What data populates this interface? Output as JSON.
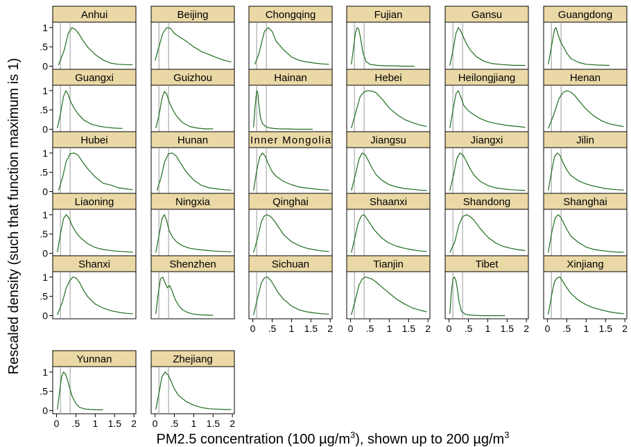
{
  "chart_data": {
    "type": "line",
    "xlabel": "PM2.5 concentration (100 µg/m³), shown up to 200 µg/m³",
    "xlabel_parts": [
      "PM2.5 concentration (100 ",
      "µg/m",
      "3",
      "), shown up to 200 ",
      "µg/m",
      "3"
    ],
    "ylabel": "Rescaled density (such that function maximum is 1)",
    "x_ticks": [
      0,
      0.5,
      1,
      1.5,
      2
    ],
    "x_tick_labels": [
      "0",
      ".5",
      "1",
      "1.5",
      "2"
    ],
    "y_ticks": [
      0,
      0.5,
      1
    ],
    "y_tick_labels": [
      "0",
      ".5",
      "1"
    ],
    "xlim": [
      -0.1,
      2.05
    ],
    "ylim": [
      -0.08,
      1.14
    ],
    "reference_lines_x": [
      0.1,
      0.35
    ],
    "colors": {
      "line": "#1e6b1e",
      "strip": "#ead8a6",
      "ref_line": "#999999"
    },
    "grid": false,
    "panels": [
      {
        "name": "Anhui",
        "x": [
          0.05,
          0.2,
          0.3,
          0.4,
          0.5,
          0.6,
          0.7,
          0.8,
          1.0,
          1.2,
          1.4,
          1.6,
          1.8,
          1.97
        ],
        "y": [
          0.03,
          0.42,
          0.84,
          1.0,
          0.94,
          0.8,
          0.64,
          0.5,
          0.3,
          0.16,
          0.08,
          0.05,
          0.04,
          0.04
        ]
      },
      {
        "name": "Beijing",
        "x": [
          0.0,
          0.1,
          0.2,
          0.3,
          0.4,
          0.5,
          0.6,
          0.8,
          1.0,
          1.2,
          1.4,
          1.6,
          1.8,
          1.97
        ],
        "y": [
          0.15,
          0.5,
          0.85,
          1.0,
          0.98,
          0.85,
          0.78,
          0.65,
          0.5,
          0.38,
          0.3,
          0.22,
          0.15,
          0.11
        ]
      },
      {
        "name": "Chongqing",
        "x": [
          0.05,
          0.15,
          0.3,
          0.4,
          0.5,
          0.6,
          0.8,
          1.0,
          1.2,
          1.4,
          1.6,
          1.8,
          1.97
        ],
        "y": [
          0.05,
          0.3,
          0.9,
          1.0,
          0.9,
          0.65,
          0.42,
          0.24,
          0.15,
          0.11,
          0.08,
          0.06,
          0.05
        ]
      },
      {
        "name": "Fujian",
        "x": [
          0.02,
          0.08,
          0.13,
          0.17,
          0.21,
          0.26,
          0.32,
          0.4,
          0.5,
          0.7,
          0.9,
          1.1,
          1.35,
          1.65
        ],
        "y": [
          0.05,
          0.5,
          0.88,
          1.0,
          0.96,
          0.72,
          0.35,
          0.12,
          0.05,
          0.02,
          0.01,
          0.01,
          0.0,
          0.0
        ]
      },
      {
        "name": "Gansu",
        "x": [
          0.02,
          0.1,
          0.18,
          0.24,
          0.3,
          0.36,
          0.45,
          0.55,
          0.7,
          0.9,
          1.1,
          1.4,
          1.7,
          1.97
        ],
        "y": [
          0.02,
          0.4,
          0.85,
          1.0,
          0.92,
          0.78,
          0.58,
          0.42,
          0.25,
          0.13,
          0.07,
          0.04,
          0.02,
          0.02
        ]
      },
      {
        "name": "Guangdong",
        "x": [
          0.02,
          0.1,
          0.18,
          0.22,
          0.28,
          0.34,
          0.4,
          0.5,
          0.6,
          0.8,
          1.0,
          1.3,
          1.6
        ],
        "y": [
          0.05,
          0.5,
          0.95,
          1.0,
          0.8,
          0.62,
          0.52,
          0.34,
          0.2,
          0.1,
          0.05,
          0.03,
          0.02
        ]
      },
      {
        "name": "Guangxi",
        "x": [
          0.02,
          0.1,
          0.18,
          0.24,
          0.3,
          0.36,
          0.45,
          0.55,
          0.7,
          0.9,
          1.1,
          1.3,
          1.5,
          1.7
        ],
        "y": [
          0.03,
          0.4,
          0.85,
          1.0,
          0.9,
          0.72,
          0.55,
          0.4,
          0.24,
          0.13,
          0.08,
          0.05,
          0.03,
          0.02
        ]
      },
      {
        "name": "Guizhou",
        "x": [
          0.02,
          0.1,
          0.18,
          0.24,
          0.3,
          0.36,
          0.45,
          0.55,
          0.7,
          0.9,
          1.1,
          1.3,
          1.5
        ],
        "y": [
          0.03,
          0.35,
          0.8,
          0.98,
          0.92,
          0.72,
          0.52,
          0.35,
          0.18,
          0.07,
          0.03,
          0.01,
          0.01
        ]
      },
      {
        "name": "Hainan",
        "x": [
          0.02,
          0.06,
          0.1,
          0.13,
          0.16,
          0.2,
          0.25,
          0.32,
          0.4,
          0.55,
          0.7,
          0.9,
          1.1,
          1.3,
          1.55
        ],
        "y": [
          0.05,
          0.6,
          1.0,
          0.95,
          0.6,
          0.3,
          0.15,
          0.08,
          0.04,
          0.02,
          0.01,
          0.01,
          0.0,
          0.0,
          0.0
        ]
      },
      {
        "name": "Hebei",
        "x": [
          0.02,
          0.15,
          0.25,
          0.35,
          0.45,
          0.55,
          0.65,
          0.8,
          1.0,
          1.2,
          1.4,
          1.6,
          1.8,
          1.97
        ],
        "y": [
          0.03,
          0.5,
          0.85,
          0.97,
          1.0,
          0.99,
          0.95,
          0.8,
          0.55,
          0.38,
          0.25,
          0.17,
          0.11,
          0.07
        ]
      },
      {
        "name": "Heilongjiang",
        "x": [
          0.02,
          0.1,
          0.18,
          0.24,
          0.3,
          0.38,
          0.48,
          0.6,
          0.8,
          1.0,
          1.2,
          1.5,
          1.8,
          1.97
        ],
        "y": [
          0.03,
          0.5,
          0.92,
          1.0,
          0.85,
          0.62,
          0.5,
          0.4,
          0.28,
          0.2,
          0.15,
          0.1,
          0.07,
          0.05
        ]
      },
      {
        "name": "Henan",
        "x": [
          0.02,
          0.15,
          0.3,
          0.4,
          0.5,
          0.6,
          0.7,
          0.8,
          1.0,
          1.2,
          1.4,
          1.6,
          1.8,
          1.97
        ],
        "y": [
          0.02,
          0.35,
          0.8,
          0.95,
          1.0,
          0.96,
          0.88,
          0.75,
          0.52,
          0.34,
          0.22,
          0.14,
          0.1,
          0.07
        ]
      },
      {
        "name": "Hubei",
        "x": [
          0.05,
          0.15,
          0.25,
          0.35,
          0.45,
          0.55,
          0.65,
          0.8,
          1.0,
          1.2,
          1.4,
          1.6,
          1.8,
          1.97
        ],
        "y": [
          0.03,
          0.35,
          0.78,
          0.98,
          1.0,
          0.95,
          0.8,
          0.6,
          0.38,
          0.22,
          0.17,
          0.1,
          0.07,
          0.05
        ]
      },
      {
        "name": "Hunan",
        "x": [
          0.05,
          0.15,
          0.25,
          0.35,
          0.45,
          0.55,
          0.65,
          0.8,
          1.0,
          1.2,
          1.4,
          1.6,
          1.8,
          1.97
        ],
        "y": [
          0.03,
          0.35,
          0.78,
          0.98,
          1.0,
          0.92,
          0.75,
          0.52,
          0.3,
          0.16,
          0.1,
          0.07,
          0.05,
          0.04
        ]
      },
      {
        "name": "Inner Mongolia",
        "x": [
          0.02,
          0.1,
          0.18,
          0.25,
          0.32,
          0.4,
          0.5,
          0.6,
          0.8,
          1.0,
          1.2,
          1.5,
          1.8,
          1.97
        ],
        "y": [
          0.03,
          0.55,
          0.9,
          1.0,
          0.92,
          0.72,
          0.52,
          0.4,
          0.26,
          0.18,
          0.12,
          0.08,
          0.05,
          0.04
        ]
      },
      {
        "name": "Jiangsu",
        "x": [
          0.02,
          0.12,
          0.22,
          0.3,
          0.38,
          0.46,
          0.55,
          0.65,
          0.8,
          1.0,
          1.2,
          1.4,
          1.6,
          1.8,
          1.97
        ],
        "y": [
          0.03,
          0.42,
          0.85,
          1.0,
          0.95,
          0.8,
          0.62,
          0.45,
          0.3,
          0.18,
          0.12,
          0.08,
          0.06,
          0.04,
          0.03
        ]
      },
      {
        "name": "Jiangxi",
        "x": [
          0.02,
          0.12,
          0.2,
          0.28,
          0.36,
          0.45,
          0.55,
          0.65,
          0.8,
          1.0,
          1.2,
          1.4,
          1.6,
          1.8,
          1.97
        ],
        "y": [
          0.03,
          0.45,
          0.85,
          1.0,
          0.95,
          0.78,
          0.58,
          0.42,
          0.27,
          0.16,
          0.1,
          0.07,
          0.05,
          0.04,
          0.03
        ]
      },
      {
        "name": "Jilin",
        "x": [
          0.02,
          0.1,
          0.18,
          0.25,
          0.32,
          0.4,
          0.5,
          0.6,
          0.8,
          1.0,
          1.2,
          1.5,
          1.8,
          1.97
        ],
        "y": [
          0.03,
          0.5,
          0.9,
          1.0,
          0.94,
          0.75,
          0.56,
          0.42,
          0.28,
          0.2,
          0.14,
          0.08,
          0.05,
          0.04
        ]
      },
      {
        "name": "Liaoning",
        "x": [
          0.02,
          0.1,
          0.18,
          0.25,
          0.32,
          0.4,
          0.5,
          0.6,
          0.8,
          1.0,
          1.2,
          1.5,
          1.8,
          1.97
        ],
        "y": [
          0.03,
          0.5,
          0.9,
          1.0,
          0.92,
          0.72,
          0.55,
          0.42,
          0.25,
          0.15,
          0.1,
          0.06,
          0.04,
          0.03
        ]
      },
      {
        "name": "Ningxia",
        "x": [
          0.02,
          0.1,
          0.18,
          0.24,
          0.3,
          0.36,
          0.45,
          0.55,
          0.7,
          0.9,
          1.1,
          1.3,
          1.5,
          1.7,
          1.97
        ],
        "y": [
          0.02,
          0.45,
          0.9,
          1.0,
          0.85,
          0.6,
          0.42,
          0.3,
          0.2,
          0.13,
          0.1,
          0.08,
          0.06,
          0.05,
          0.04
        ]
      },
      {
        "name": "Qinghai",
        "x": [
          0.02,
          0.12,
          0.22,
          0.3,
          0.38,
          0.46,
          0.55,
          0.65,
          0.8,
          1.0,
          1.2,
          1.4,
          1.6,
          1.8,
          1.97
        ],
        "y": [
          0.02,
          0.38,
          0.82,
          0.97,
          1.0,
          0.95,
          0.85,
          0.7,
          0.48,
          0.3,
          0.2,
          0.13,
          0.09,
          0.06,
          0.05
        ]
      },
      {
        "name": "Shaanxi",
        "x": [
          0.02,
          0.1,
          0.2,
          0.28,
          0.35,
          0.42,
          0.5,
          0.6,
          0.8,
          1.0,
          1.2,
          1.4,
          1.6,
          1.8,
          1.97
        ],
        "y": [
          0.02,
          0.35,
          0.8,
          0.97,
          1.0,
          0.9,
          0.78,
          0.62,
          0.4,
          0.26,
          0.18,
          0.13,
          0.09,
          0.06,
          0.05
        ]
      },
      {
        "name": "Shandong",
        "x": [
          0.02,
          0.15,
          0.25,
          0.35,
          0.45,
          0.55,
          0.65,
          0.8,
          1.0,
          1.2,
          1.4,
          1.6,
          1.8,
          1.97
        ],
        "y": [
          0.02,
          0.3,
          0.72,
          0.95,
          1.0,
          0.95,
          0.85,
          0.65,
          0.42,
          0.27,
          0.18,
          0.13,
          0.09,
          0.07
        ]
      },
      {
        "name": "Shanghai",
        "x": [
          0.02,
          0.1,
          0.2,
          0.28,
          0.35,
          0.42,
          0.5,
          0.6,
          0.8,
          1.0,
          1.2,
          1.4,
          1.6,
          1.8,
          1.97
        ],
        "y": [
          0.02,
          0.5,
          0.92,
          1.0,
          0.92,
          0.78,
          0.62,
          0.45,
          0.28,
          0.16,
          0.1,
          0.07,
          0.05,
          0.03,
          0.03
        ]
      },
      {
        "name": "Shanxi",
        "x": [
          0.02,
          0.15,
          0.25,
          0.35,
          0.42,
          0.5,
          0.6,
          0.7,
          0.8,
          1.0,
          1.2,
          1.4,
          1.6,
          1.8,
          1.97
        ],
        "y": [
          0.02,
          0.35,
          0.72,
          0.92,
          1.0,
          0.98,
          0.85,
          0.65,
          0.5,
          0.3,
          0.2,
          0.13,
          0.09,
          0.06,
          0.05
        ]
      },
      {
        "name": "Shenzhen",
        "x": [
          0.02,
          0.08,
          0.14,
          0.2,
          0.26,
          0.32,
          0.38,
          0.45,
          0.52,
          0.6,
          0.7,
          0.85,
          1.0,
          1.2,
          1.5
        ],
        "y": [
          0.05,
          0.55,
          0.95,
          1.0,
          0.85,
          0.72,
          0.78,
          0.62,
          0.42,
          0.28,
          0.16,
          0.08,
          0.04,
          0.02,
          0.01
        ]
      },
      {
        "name": "Sichuan",
        "x": [
          0.02,
          0.12,
          0.22,
          0.3,
          0.38,
          0.46,
          0.55,
          0.65,
          0.8,
          1.0,
          1.2,
          1.4,
          1.6,
          1.8,
          1.97
        ],
        "y": [
          0.02,
          0.45,
          0.85,
          0.98,
          1.0,
          0.92,
          0.78,
          0.6,
          0.42,
          0.25,
          0.15,
          0.1,
          0.07,
          0.05,
          0.04
        ]
      },
      {
        "name": "Tianjin",
        "x": [
          0.02,
          0.12,
          0.22,
          0.3,
          0.38,
          0.46,
          0.55,
          0.65,
          0.8,
          1.0,
          1.2,
          1.4,
          1.6,
          1.8,
          1.97
        ],
        "y": [
          0.02,
          0.4,
          0.8,
          0.95,
          1.0,
          0.98,
          0.95,
          0.88,
          0.75,
          0.58,
          0.42,
          0.3,
          0.2,
          0.14,
          0.1
        ]
      },
      {
        "name": "Tibet",
        "x": [
          0.02,
          0.06,
          0.1,
          0.14,
          0.18,
          0.22,
          0.26,
          0.32,
          0.4,
          0.5,
          0.65,
          0.85,
          1.05,
          1.25,
          1.45
        ],
        "y": [
          0.05,
          0.6,
          0.95,
          1.0,
          0.9,
          0.65,
          0.35,
          0.12,
          0.05,
          0.02,
          0.01,
          0.0,
          0.0,
          0.0,
          0.0
        ]
      },
      {
        "name": "Xinjiang",
        "x": [
          0.02,
          0.1,
          0.18,
          0.25,
          0.32,
          0.4,
          0.5,
          0.6,
          0.8,
          1.0,
          1.2,
          1.4,
          1.6,
          1.8,
          1.97
        ],
        "y": [
          0.03,
          0.5,
          0.88,
          0.98,
          1.0,
          0.88,
          0.72,
          0.58,
          0.4,
          0.28,
          0.2,
          0.15,
          0.1,
          0.07,
          0.05
        ]
      },
      {
        "name": "Yunnan",
        "x": [
          0.02,
          0.08,
          0.13,
          0.18,
          0.23,
          0.28,
          0.34,
          0.4,
          0.5,
          0.6,
          0.75,
          0.9,
          1.05,
          1.2
        ],
        "y": [
          0.03,
          0.5,
          0.88,
          1.0,
          0.95,
          0.8,
          0.58,
          0.38,
          0.18,
          0.08,
          0.04,
          0.03,
          0.02,
          0.02
        ]
      },
      {
        "name": "Zhejiang",
        "x": [
          0.02,
          0.1,
          0.18,
          0.26,
          0.34,
          0.42,
          0.5,
          0.6,
          0.8,
          1.0,
          1.2,
          1.4,
          1.6,
          1.8,
          1.97
        ],
        "y": [
          0.03,
          0.45,
          0.88,
          1.0,
          0.92,
          0.75,
          0.56,
          0.4,
          0.24,
          0.14,
          0.08,
          0.05,
          0.04,
          0.03,
          0.03
        ]
      }
    ]
  }
}
